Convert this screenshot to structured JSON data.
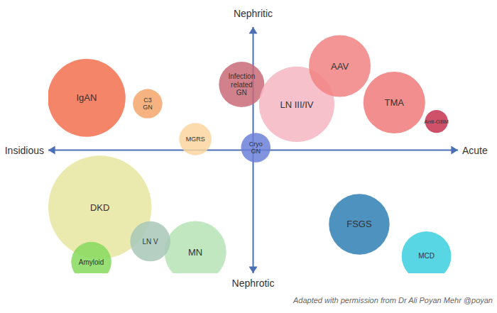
{
  "chart_data": {
    "type": "bubble",
    "axis_labels": {
      "top": "Nephritic",
      "bottom": "Nephrotic",
      "left": "Insidious",
      "right": "Acute"
    },
    "annotations": [
      "Adapted with permission from Dr Ali Poyan Mehr @poyan"
    ],
    "xlim": [
      -10,
      10
    ],
    "ylim": [
      -10,
      10
    ],
    "tick_labels": false,
    "points": [
      {
        "label": "DKD",
        "x": -7.48,
        "y": -4.64,
        "size": 2.52,
        "color": "#e8e6a0"
      },
      {
        "label": "IgAN",
        "x": -8.13,
        "y": 4.24,
        "size": 1.9,
        "color": "#f2704f"
      },
      {
        "label": "C3 GN",
        "x": -5.15,
        "y": 3.77,
        "size": 0.72,
        "color": "#f5a66b"
      },
      {
        "label": "Infection related GN",
        "x": -0.56,
        "y": 5.33,
        "size": 1.11,
        "color": "#c96b78"
      },
      {
        "label": "LN III/IV",
        "x": 2.13,
        "y": 3.72,
        "size": 1.84,
        "color": "#f4b6c2"
      },
      {
        "label": "AAV",
        "x": 4.23,
        "y": 6.83,
        "size": 1.51,
        "color": "#f28282"
      },
      {
        "label": "TMA",
        "x": 6.89,
        "y": 3.86,
        "size": 1.51,
        "color": "#f07a7a"
      },
      {
        "label": "Anti-GBM",
        "x": 8.95,
        "y": 2.33,
        "size": 0.56,
        "color": "#c7314f"
      },
      {
        "label": "MGRS",
        "x": -2.82,
        "y": 0.89,
        "size": 0.79,
        "color": "#fbd5a0"
      },
      {
        "label": "Cryo GN",
        "x": 0.13,
        "y": 0.2,
        "size": 0.72,
        "color": "#6b7fd8"
      },
      {
        "label": "MN",
        "x": -2.82,
        "y": -8.27,
        "size": 1.51,
        "color": "#b5e3b5"
      },
      {
        "label": "LN V",
        "x": -5.02,
        "y": -7.41,
        "size": 0.98,
        "color": "#a8c8b8"
      },
      {
        "label": "Amyloid",
        "x": -7.9,
        "y": -9.08,
        "size": 0.98,
        "color": "#86d95e"
      },
      {
        "label": "FSGS",
        "x": 5.18,
        "y": -6.02,
        "size": 1.48,
        "color": "#2f7fb5"
      },
      {
        "label": "MCD",
        "x": 8.46,
        "y": -8.61,
        "size": 1.21,
        "color": "#3bcfdf"
      }
    ]
  }
}
